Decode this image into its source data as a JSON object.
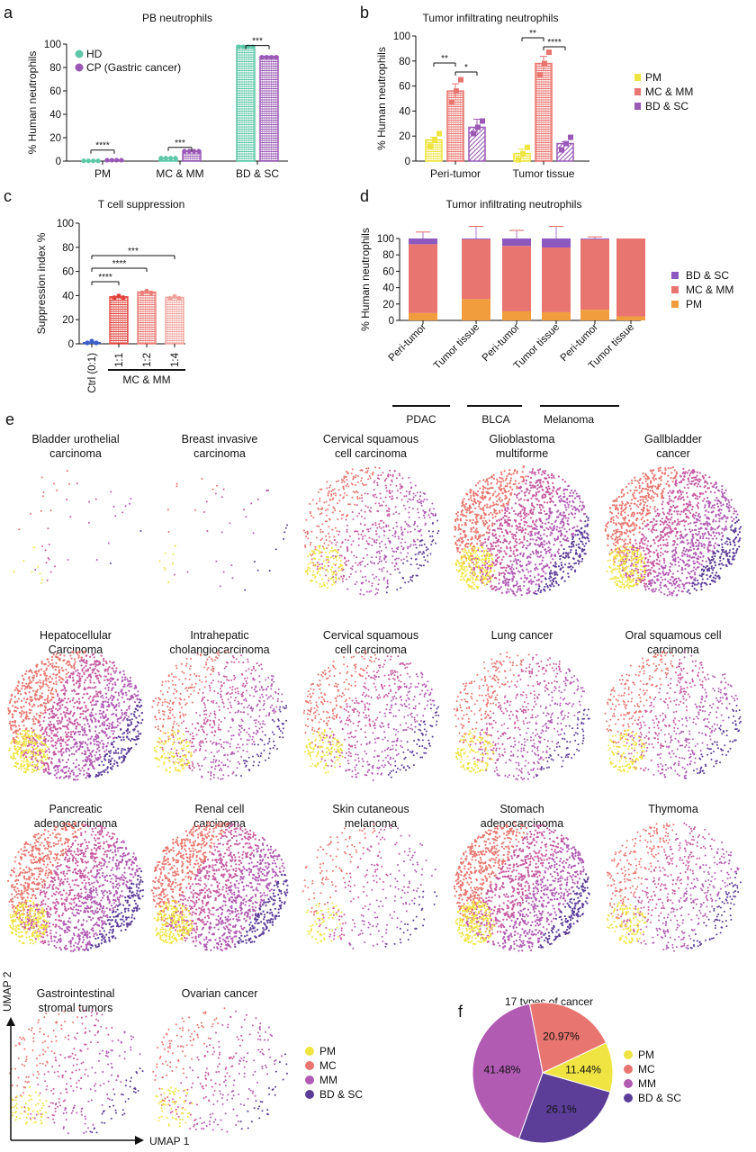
{
  "colors": {
    "PM": "#f0e442",
    "MC": "#e8756f",
    "MM": "#b15bb3",
    "BD_SC": "#5c3e98",
    "HD": "#5ec8a8",
    "CP": "#9b59b6",
    "ctrl": "#3a5fc8"
  },
  "panels": {
    "a": "a",
    "b": "b",
    "c": "c",
    "d": "d",
    "e": "e",
    "f": "f"
  },
  "umap": {
    "x_label": "UMAP 1",
    "y_label": "UMAP 2"
  },
  "chart_data": [
    {
      "id": "a",
      "type": "bar",
      "title": "PB neutrophils",
      "ylabel": "% Human neutrophils",
      "ylim": [
        0,
        100
      ],
      "yticks": [
        "0",
        "20",
        "40",
        "60",
        "80",
        "100"
      ],
      "categories": [
        "PM",
        "MC & MM",
        "BD & SC"
      ],
      "series": [
        {
          "name": "HD",
          "values": [
            0.2,
            2.5,
            98.5
          ]
        },
        {
          "name": "CP (Gastric cancer)",
          "values": [
            0.8,
            8.5,
            89.5
          ]
        }
      ],
      "significance": [
        "****",
        "***",
        "***"
      ],
      "legend": "top-left"
    },
    {
      "id": "b",
      "type": "bar",
      "title": "Tumor infiltrating neutrophils",
      "ylabel": "% Human neutrophils",
      "ylim": [
        0,
        100
      ],
      "yticks": [
        "0",
        "20",
        "40",
        "60",
        "80",
        "100"
      ],
      "categories": [
        "Peri-tumor",
        "Tumor tissue"
      ],
      "series": [
        {
          "name": "PM",
          "values": [
            17,
            6
          ]
        },
        {
          "name": "MC & MM",
          "values": [
            56,
            78
          ]
        },
        {
          "name": "BD & SC",
          "values": [
            27,
            14
          ]
        }
      ],
      "significance_peri": [
        "**",
        "*"
      ],
      "significance_tumor": [
        "**",
        "****"
      ],
      "legend": "right"
    },
    {
      "id": "c",
      "type": "bar",
      "title": "T cell suppression",
      "ylabel": "Suppression index %",
      "ylim": [
        0,
        100
      ],
      "yticks": [
        "0",
        "20",
        "40",
        "60",
        "80",
        "100"
      ],
      "categories": [
        "Ctrl (0:1)",
        "1:1",
        "1:2",
        "1:4"
      ],
      "values": [
        1.5,
        39,
        43,
        38.5
      ],
      "group_label": "MC & MM",
      "significance": [
        "****",
        "****",
        "***"
      ]
    },
    {
      "id": "d",
      "type": "bar",
      "stacked": true,
      "title": "Tumor infiltrating neutrophils",
      "ylabel": "% Human neutrophils",
      "ylim": [
        0,
        100
      ],
      "yticks": [
        "0",
        "20",
        "40",
        "60",
        "80",
        "100"
      ],
      "categories": [
        "Peri-tumor",
        "Tumor tissue",
        "Peri-tumor",
        "Tumor tissue",
        "Peri-tumor",
        "Tumor tissue"
      ],
      "groups": [
        "PDAC",
        "BLCA",
        "Melanoma"
      ],
      "series": [
        {
          "name": "PM",
          "values": [
            9,
            26,
            11,
            10,
            13,
            5
          ]
        },
        {
          "name": "MC & MM",
          "values": [
            84,
            73,
            80,
            79,
            86,
            95
          ]
        },
        {
          "name": "BD & SC",
          "values": [
            7,
            1,
            9,
            11,
            1,
            0
          ]
        }
      ],
      "legend": "right"
    },
    {
      "id": "e",
      "type": "scatter",
      "panels": [
        {
          "title": "Bladder urothelial\ncarcinoma",
          "density": "sparse"
        },
        {
          "title": "Breast invasive\ncarcinoma",
          "density": "sparse"
        },
        {
          "title": "Cervical squamous\ncell carcinoma",
          "density": "medium"
        },
        {
          "title": "Glioblastoma\nmultiforme",
          "density": "dense"
        },
        {
          "title": "Gallbladder\ncancer",
          "density": "dense"
        },
        {
          "title": "Hepatocellular\nCarcinoma",
          "density": "dense"
        },
        {
          "title": "Intrahepatic\ncholangiocarcinoma",
          "density": "medium"
        },
        {
          "title": "Cervical squamous\ncell carcinoma",
          "density": "medium"
        },
        {
          "title": "Lung cancer",
          "density": "medium"
        },
        {
          "title": "Oral squamous cell\ncarcinoma",
          "density": "medium"
        },
        {
          "title": "Pancreatic\nadenocarcinoma",
          "density": "dense"
        },
        {
          "title": "Renal cell\ncarcinoma",
          "density": "dense"
        },
        {
          "title": "Skin cutaneous\nmelanoma",
          "density": "light"
        },
        {
          "title": "Stomach\nadenocarcinoma",
          "density": "dense"
        },
        {
          "title": "Thymoma",
          "density": "medium"
        },
        {
          "title": "Gastrointestinal\nstromal tumors",
          "density": "light"
        },
        {
          "title": "Ovarian cancer",
          "density": "light"
        }
      ],
      "legend": [
        "PM",
        "MC",
        "MM",
        "BD & SC"
      ]
    },
    {
      "id": "f",
      "type": "pie",
      "title": "17 types of cancer",
      "slices": [
        {
          "name": "PM",
          "value": 11.44,
          "label": "11.44%"
        },
        {
          "name": "MC",
          "value": 20.97,
          "label": "20.97%"
        },
        {
          "name": "MM",
          "value": 41.48,
          "label": "41.48%"
        },
        {
          "name": "BD & SC",
          "value": 26.1,
          "label": "26.1%"
        }
      ],
      "legend": [
        "PM",
        "MC",
        "MM",
        "BD & SC"
      ]
    }
  ]
}
